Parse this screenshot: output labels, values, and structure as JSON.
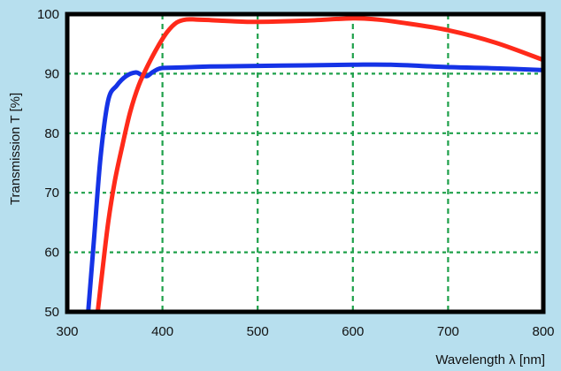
{
  "chart_data": {
    "type": "line",
    "title": "",
    "xlabel": "Wavelength λ [nm]",
    "ylabel": "Transmission T [%]",
    "xlim": [
      300,
      800
    ],
    "ylim": [
      50,
      100
    ],
    "x_ticks": [
      300,
      400,
      500,
      600,
      700,
      800
    ],
    "y_ticks": [
      50,
      60,
      70,
      80,
      90,
      100
    ],
    "grid": true,
    "legend": "none",
    "colors": {
      "background": "#b7dfee",
      "plot_area": "#ffffff",
      "frame": "#000000",
      "grid": "#1ea04a"
    },
    "series": [
      {
        "color": "#1533e6",
        "x": [
          322,
          328,
          335,
          343,
          352,
          362,
          372,
          378,
          384,
          390,
          398,
          410,
          430,
          450,
          500,
          550,
          600,
          640,
          700,
          750,
          800
        ],
        "y": [
          50,
          62,
          76,
          85.5,
          88,
          89.6,
          90.2,
          89.8,
          89.6,
          90.3,
          90.9,
          91,
          91.1,
          91.2,
          91.3,
          91.4,
          91.5,
          91.5,
          91.1,
          90.9,
          90.6
        ]
      },
      {
        "color": "#ff2a1a",
        "x": [
          332,
          337,
          343,
          350,
          358,
          366,
          375,
          385,
          395,
          405,
          415,
          425,
          435,
          450,
          475,
          500,
          550,
          600,
          625,
          650,
          700,
          750,
          800
        ],
        "y": [
          50,
          57,
          65,
          72,
          78,
          83.5,
          88,
          91.5,
          94.5,
          97,
          98.6,
          99.1,
          99.1,
          99,
          98.8,
          98.7,
          98.9,
          99.3,
          99.1,
          98.6,
          97.3,
          95.2,
          92.3
        ]
      }
    ]
  }
}
